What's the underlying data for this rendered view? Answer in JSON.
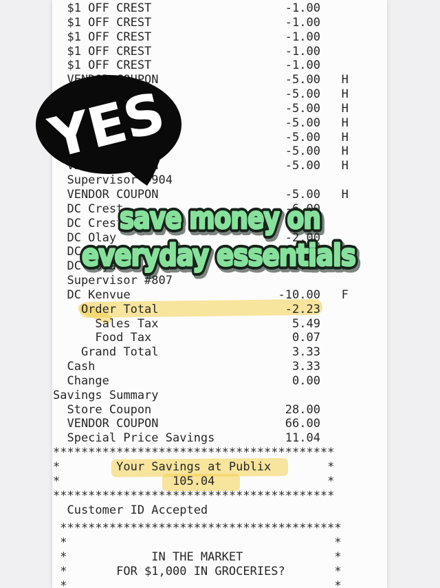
{
  "colors": {
    "background": "#f0f0f2",
    "paper": "#fcfcfd",
    "ink": "#272727",
    "highlight": "#f2cf4f",
    "bubble": "#0a0a0a",
    "bubble_text": "#ffffff",
    "caption_fill": "#87e19d",
    "caption_stroke": "#16231a"
  },
  "annotations": {
    "bubble_text": "YES",
    "caption_line1": "save money on",
    "caption_line2": "everyday essentials",
    "highlighted_values": [
      "Order Total -2.23",
      "Your Savings at Publix",
      "105.04"
    ]
  },
  "receipt": {
    "store": "Publix",
    "lines": [
      {
        "text": "  $1 OFF CREST                   -1.00"
      },
      {
        "text": "  $1 OFF CREST                   -1.00"
      },
      {
        "text": "  $1 OFF CREST                   -1.00"
      },
      {
        "text": "  $1 OFF CREST                   -1.00"
      },
      {
        "text": "  $1 OFF CREST                   -1.00"
      },
      {
        "text": "  VENDOR COUPON                  -5.00   H"
      },
      {
        "text": "  VENDOR COUPON                  -5.00   H"
      },
      {
        "text": "  VENDOR COUPON                  -5.00   H"
      },
      {
        "text": "  VENDOR COUPON                  -5.00   H"
      },
      {
        "text": "  VENDOR COUPON                  -5.00   H"
      },
      {
        "text": "  VENDOR COUPON                  -5.00   H"
      },
      {
        "text": "  VENDOR COUPON                  -5.00   H"
      },
      {
        "text": "  Supervisor #904"
      },
      {
        "text": "  VENDOR COUPON                  -5.00   H"
      },
      {
        "text": "  DC Crest                       -6.00"
      },
      {
        "text": "  DC Crest                       -6.00"
      },
      {
        "text": "  DC Olay                        -2.00"
      },
      {
        "text": "  DC"
      },
      {
        "text": "  DC Royal                       -1.00   F"
      },
      {
        "text": "  Supervisor #807"
      },
      {
        "text": "  DC Kenvue                     -10.00   F"
      },
      {
        "text": "    Order Total                  -2.23"
      },
      {
        "text": "      Sales Tax                   5.49"
      },
      {
        "text": "      Food Tax                    0.07"
      },
      {
        "text": "    Grand Total                   3.33"
      },
      {
        "text": "  Cash                            3.33"
      },
      {
        "text": "  Change                          0.00"
      },
      {
        "text": "Savings Summary"
      },
      {
        "text": "  Store Coupon                   28.00"
      },
      {
        "text": "  VENDOR COUPON                  66.00"
      },
      {
        "text": "  Special Price Savings          11.04"
      },
      {
        "text": "****************************************"
      },
      {
        "text": "*        Your Savings at Publix        *"
      },
      {
        "text": "*                105.04                *"
      },
      {
        "text": "****************************************"
      },
      {
        "text": "  Customer ID Accepted"
      },
      {
        "text": " ****************************************",
        "gap": 6
      },
      {
        "text": " *                                      *"
      },
      {
        "text": " *            IN THE MARKET             *"
      },
      {
        "text": " *       FOR $1,000 IN GROCERIES?       *"
      },
      {
        "text": " *                                      *"
      }
    ]
  }
}
